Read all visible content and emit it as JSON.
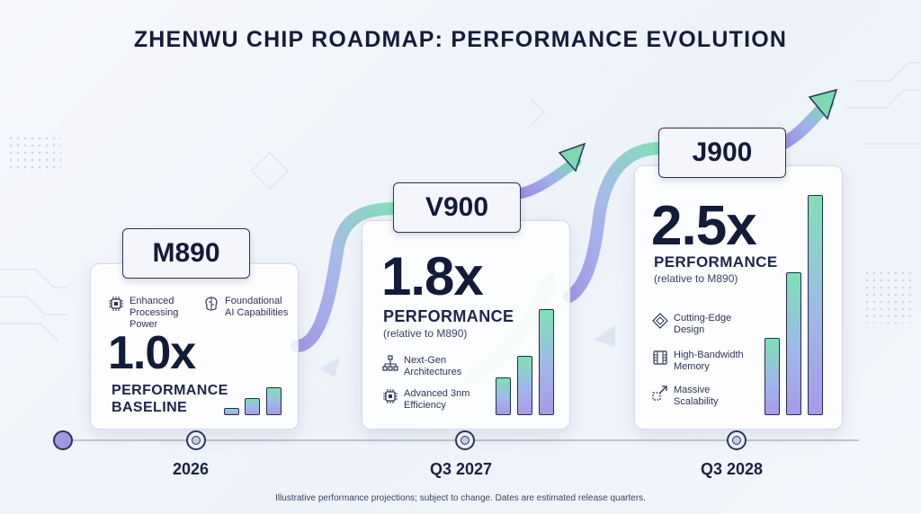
{
  "title": "ZHENWU CHIP ROADMAP: PERFORMANCE EVOLUTION",
  "footnote": "Illustrative performance projections; subject to change. Dates are estimated release quarters.",
  "milestones": [
    {
      "chip": "M890",
      "multiplier": "1.0x",
      "perf_label": "PERFORMANCE",
      "sub_label": "BASELINE",
      "date": "2026",
      "features": [
        {
          "icon": "chip-icon",
          "text": "Enhanced Processing Power"
        },
        {
          "icon": "brain-icon",
          "text": "Foundational AI Capabilities"
        }
      ],
      "bar_levels": [
        0.15,
        0.38,
        0.62
      ]
    },
    {
      "chip": "V900",
      "multiplier": "1.8x",
      "perf_label": "PERFORMANCE",
      "sub_label": "(relative to M890)",
      "date": "Q3 2027",
      "features": [
        {
          "icon": "hierarchy-icon",
          "text": "Next-Gen Architectures"
        },
        {
          "icon": "chip-icon",
          "text": "Advanced 3nm Efficiency"
        }
      ],
      "bar_levels": [
        0.35,
        0.55,
        0.98
      ]
    },
    {
      "chip": "J900",
      "multiplier": "2.5x",
      "perf_label": "PERFORMANCE",
      "sub_label": "(relative to M890)",
      "date": "Q3 2028",
      "features": [
        {
          "icon": "design-icon",
          "text": "Cutting-Edge Design"
        },
        {
          "icon": "memory-icon",
          "text": "High-Bandwidth Memory"
        },
        {
          "icon": "scale-icon",
          "text": "Massive Scalability"
        }
      ],
      "bar_levels": [
        0.35,
        0.65,
        1.0
      ]
    }
  ],
  "colors": {
    "accent_green": "#7fe0b4",
    "accent_purple": "#a89ae6",
    "outline": "#232c4e"
  }
}
